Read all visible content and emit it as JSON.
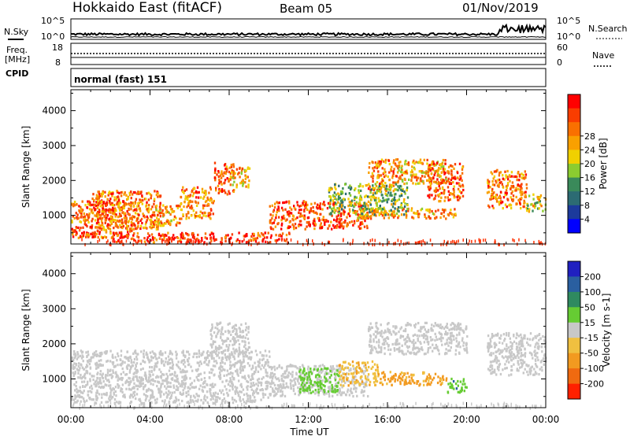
{
  "header": {
    "station": "Hokkaido East (fitACF)",
    "beam": "Beam 05",
    "date": "01/Nov/2019"
  },
  "noise_panel": {
    "left_label": "N.Sky",
    "right_label": "N.Search",
    "left_ticks": [
      "10^5",
      "10^0"
    ],
    "right_ticks": [
      "10^5",
      "10^0"
    ]
  },
  "freq_panel": {
    "left_label_1": "Freq.",
    "left_label_2": "[MHz]",
    "left_ticks": [
      "18",
      "8"
    ],
    "right_label": "Nave",
    "right_ticks": [
      "60",
      "0"
    ]
  },
  "cpid_panel": {
    "label": "CPID",
    "value": "normal (fast) 151"
  },
  "chart_data": [
    {
      "type": "heatmap",
      "title": "",
      "xlabel": "Time UT",
      "ylabel": "Slant Range [km]",
      "x_ticks": [
        "00:00",
        "04:00",
        "08:00",
        "12:00",
        "16:00",
        "20:00",
        "00:00"
      ],
      "y_ticks": [
        1000,
        2000,
        3000,
        4000
      ],
      "ylim": [
        180,
        4600
      ],
      "colorbar": {
        "label": "Power [dB]",
        "ticks": [
          4,
          8,
          12,
          16,
          20,
          24,
          28
        ],
        "colors": [
          "#0000ff",
          "#1c3a9c",
          "#2c6b73",
          "#3a8a5a",
          "#8bcc30",
          "#f0d000",
          "#f9a000",
          "#f97000",
          "#f93d00",
          "#ff0000"
        ]
      },
      "regions": [
        {
          "t0": 0.0,
          "t1": 3.2,
          "r0": 350,
          "r1": 1400,
          "v": 25
        },
        {
          "t0": 1.0,
          "t1": 4.5,
          "r0": 600,
          "r1": 1700,
          "v": 24
        },
        {
          "t0": 4.0,
          "t1": 5.5,
          "r0": 700,
          "r1": 1300,
          "v": 22
        },
        {
          "t0": 5.5,
          "t1": 7.2,
          "r0": 900,
          "r1": 1800,
          "v": 23
        },
        {
          "t0": 7.2,
          "t1": 8.2,
          "r0": 1600,
          "r1": 2500,
          "v": 26
        },
        {
          "t0": 8.0,
          "t1": 9.0,
          "r0": 1800,
          "r1": 2400,
          "v": 20
        },
        {
          "t0": 10.0,
          "t1": 15.0,
          "r0": 600,
          "r1": 1400,
          "v": 27
        },
        {
          "t0": 2.0,
          "t1": 11.0,
          "r0": 220,
          "r1": 500,
          "v": 28
        },
        {
          "t0": 15.0,
          "t1": 16.5,
          "r0": 1700,
          "r1": 2600,
          "v": 24
        },
        {
          "t0": 16.5,
          "t1": 19.0,
          "r0": 1900,
          "r1": 2600,
          "v": 20
        },
        {
          "t0": 18.0,
          "t1": 19.8,
          "r0": 1400,
          "r1": 2500,
          "v": 25
        },
        {
          "t0": 21.0,
          "t1": 23.0,
          "r0": 1200,
          "r1": 2300,
          "v": 24
        },
        {
          "t0": 23.0,
          "t1": 24.0,
          "r0": 1100,
          "r1": 1600,
          "v": 18
        },
        {
          "t0": 14.5,
          "t1": 19.5,
          "r0": 900,
          "r1": 1200,
          "v": 22
        },
        {
          "t0": 13.0,
          "t1": 17.0,
          "r0": 1000,
          "r1": 1900,
          "v": 14
        }
      ]
    },
    {
      "type": "heatmap",
      "title": "",
      "xlabel": "Time UT",
      "ylabel": "Slant Range [km]",
      "x_ticks": [
        "00:00",
        "04:00",
        "08:00",
        "12:00",
        "16:00",
        "20:00",
        "00:00"
      ],
      "y_ticks": [
        1000,
        2000,
        3000,
        4000
      ],
      "ylim": [
        180,
        4600
      ],
      "colorbar": {
        "label": "Velocity [m s-1]",
        "ticks": [
          200,
          100,
          50,
          15,
          -15,
          -50,
          -100,
          -200
        ],
        "colors": [
          "#2020c0",
          "#2a5fa0",
          "#2f8a60",
          "#66cc33",
          "#c8c8c8",
          "#f0c040",
          "#f29a20",
          "#f06a10",
          "#ff2000"
        ]
      },
      "regions": [
        {
          "t0": 0.0,
          "t1": 10.0,
          "r0": 300,
          "r1": 1800,
          "v": 0
        },
        {
          "t0": 7.0,
          "t1": 9.0,
          "r0": 1600,
          "r1": 2600,
          "v": 0
        },
        {
          "t0": 10.0,
          "t1": 15.0,
          "r0": 500,
          "r1": 1400,
          "v": 0
        },
        {
          "t0": 15.0,
          "t1": 20.0,
          "r0": 1700,
          "r1": 2600,
          "v": 0
        },
        {
          "t0": 21.0,
          "t1": 24.0,
          "r0": 1100,
          "r1": 2300,
          "v": 0
        },
        {
          "t0": 11.5,
          "t1": 13.5,
          "r0": 600,
          "r1": 1300,
          "v": 30
        },
        {
          "t0": 13.5,
          "t1": 15.5,
          "r0": 800,
          "r1": 1500,
          "v": -40
        },
        {
          "t0": 15.5,
          "t1": 19.0,
          "r0": 800,
          "r1": 1200,
          "v": -60
        },
        {
          "t0": 19.0,
          "t1": 20.0,
          "r0": 600,
          "r1": 1000,
          "v": 40
        }
      ]
    }
  ]
}
